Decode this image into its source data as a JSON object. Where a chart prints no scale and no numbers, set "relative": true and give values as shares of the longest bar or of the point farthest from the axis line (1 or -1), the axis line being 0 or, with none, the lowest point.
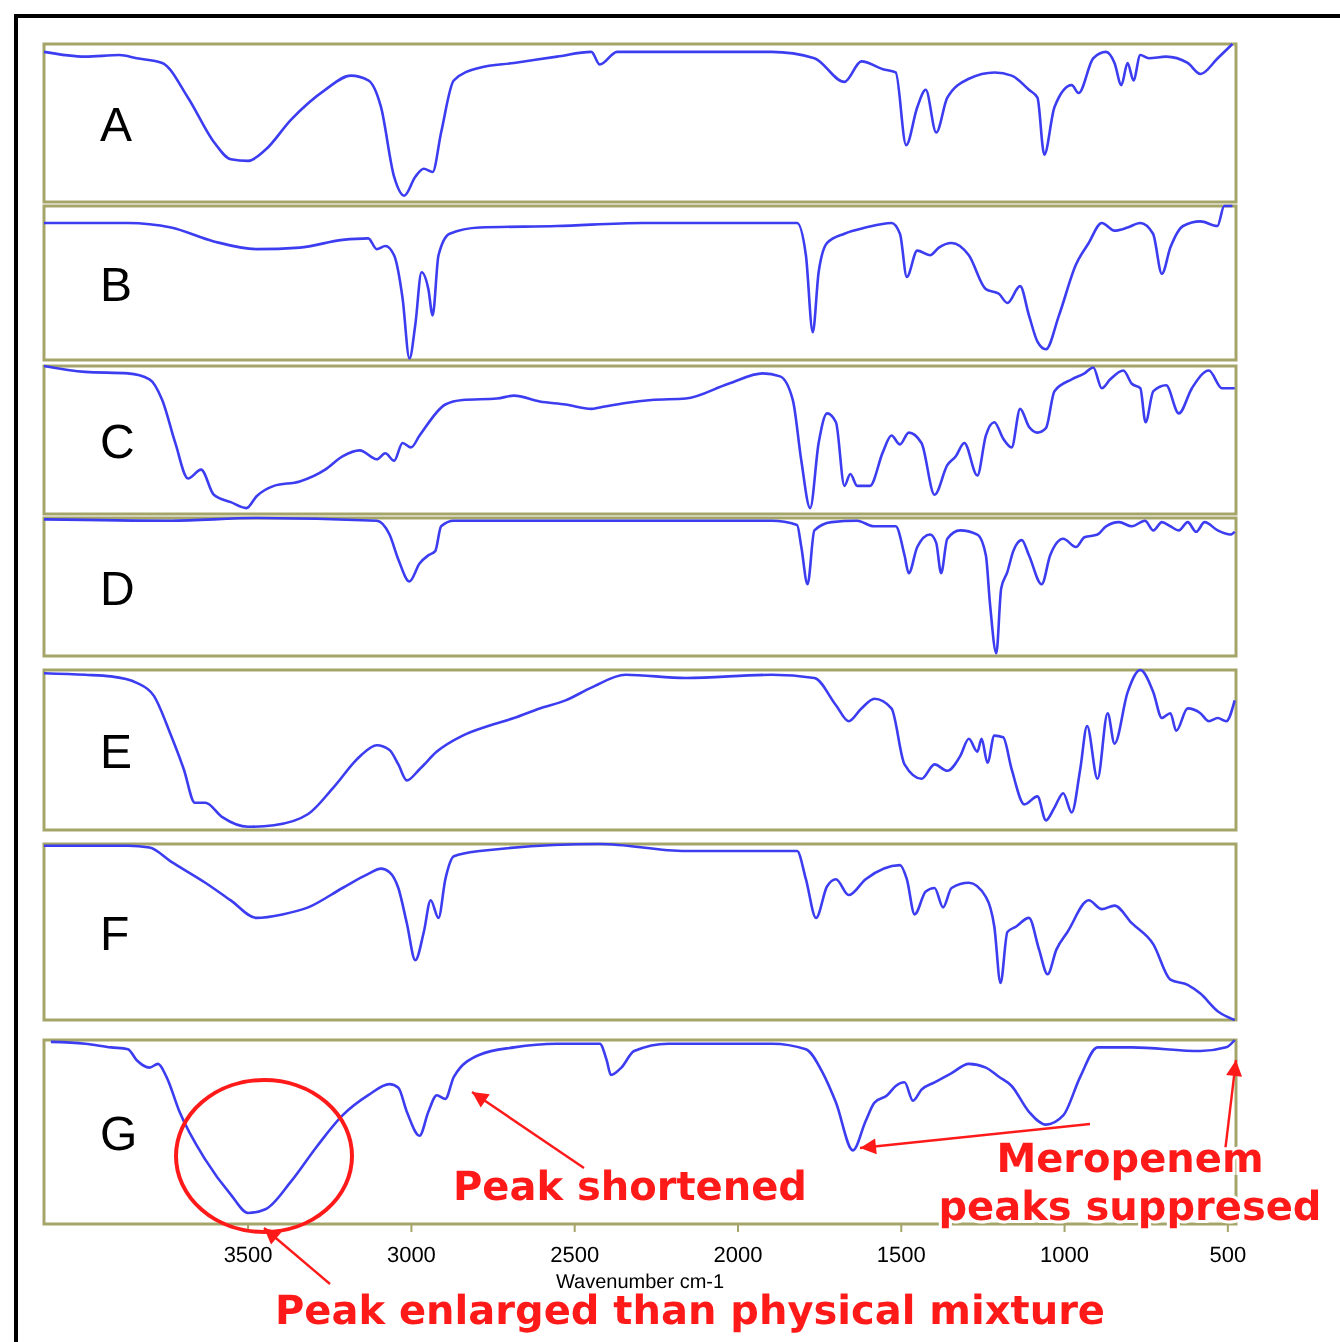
{
  "chart_data": [
    {
      "type": "line",
      "title": "A",
      "relative": true,
      "xlim": [
        4125,
        475
      ],
      "tick_labels": false,
      "series": [
        {
          "color": "#3c3cf0",
          "x": [
            4125,
            3999,
            3894,
            3841,
            3763,
            3684,
            3605,
            3553,
            3500,
            3447,
            3369,
            3264,
            3185,
            3132,
            3093,
            3053,
            3022,
            2988,
            2962,
            2935,
            2909,
            2870,
            2791,
            2686,
            2554,
            2449,
            2423,
            2370,
            2160,
            1897,
            1766,
            1674,
            1622,
            1556,
            1517,
            1485,
            1451,
            1425,
            1393,
            1359,
            1293,
            1214,
            1162,
            1109,
            1083,
            1062,
            1031,
            978,
            957,
            912,
            873,
            847,
            826,
            807,
            789,
            768,
            742,
            689,
            623,
            584,
            531,
            486
          ],
          "values": [
            0.95,
            0.92,
            0.93,
            0.91,
            0.88,
            0.66,
            0.38,
            0.27,
            0.26,
            0.33,
            0.52,
            0.71,
            0.8,
            0.77,
            0.6,
            0.16,
            0.04,
            0.16,
            0.21,
            0.19,
            0.44,
            0.77,
            0.85,
            0.88,
            0.92,
            0.95,
            0.87,
            0.95,
            0.95,
            0.95,
            0.91,
            0.76,
            0.89,
            0.84,
            0.82,
            0.36,
            0.6,
            0.71,
            0.44,
            0.66,
            0.78,
            0.82,
            0.8,
            0.71,
            0.66,
            0.3,
            0.6,
            0.74,
            0.69,
            0.91,
            0.95,
            0.88,
            0.74,
            0.88,
            0.77,
            0.93,
            0.91,
            0.92,
            0.88,
            0.81,
            0.91,
            1
          ]
        }
      ]
    },
    {
      "type": "line",
      "title": "B",
      "relative": true,
      "xlim": [
        4125,
        475
      ],
      "tick_labels": false,
      "series": [
        {
          "color": "#3c3cf0",
          "x": [
            4125,
            3868,
            3736,
            3605,
            3474,
            3342,
            3211,
            3132,
            3106,
            3080,
            3053,
            3027,
            3006,
            2988,
            2969,
            2948,
            2935,
            2917,
            2883,
            2791,
            2554,
            2292,
            1819,
            1792,
            1771,
            1753,
            1727,
            1674,
            1609,
            1530,
            1504,
            1483,
            1451,
            1412,
            1385,
            1346,
            1293,
            1241,
            1201,
            1175,
            1136,
            1109,
            1083,
            1057,
            1017,
            965,
            926,
            886,
            847,
            807,
            768,
            729,
            702,
            676,
            637,
            584,
            532,
            511,
            486
          ],
          "values": [
            0.89,
            0.89,
            0.86,
            0.77,
            0.72,
            0.73,
            0.78,
            0.79,
            0.72,
            0.74,
            0.68,
            0.4,
            0.01,
            0.23,
            0.57,
            0.46,
            0.29,
            0.68,
            0.82,
            0.86,
            0.87,
            0.89,
            0.89,
            0.68,
            0.18,
            0.57,
            0.76,
            0.82,
            0.86,
            0.89,
            0.82,
            0.54,
            0.71,
            0.68,
            0.73,
            0.76,
            0.68,
            0.46,
            0.43,
            0.37,
            0.48,
            0.29,
            0.12,
            0.07,
            0.29,
            0.62,
            0.76,
            0.89,
            0.84,
            0.86,
            0.89,
            0.82,
            0.56,
            0.73,
            0.87,
            0.9,
            0.87,
            1,
            1
          ]
        }
      ]
    },
    {
      "type": "line",
      "title": "C",
      "relative": true,
      "xlim": [
        4125,
        475
      ],
      "tick_labels": false,
      "series": [
        {
          "color": "#3c3cf0",
          "x": [
            4125,
            3999,
            3868,
            3802,
            3763,
            3723,
            3684,
            3644,
            3605,
            3553,
            3505,
            3474,
            3421,
            3342,
            3264,
            3211,
            3158,
            3106,
            3080,
            3053,
            3027,
            3001,
            2975,
            2896,
            2843,
            2738,
            2686,
            2607,
            2528,
            2449,
            2423,
            2344,
            2265,
            2160,
            2029,
            1924,
            1871,
            1832,
            1806,
            1779,
            1753,
            1727,
            1700,
            1674,
            1656,
            1635,
            1596,
            1556,
            1530,
            1504,
            1477,
            1438,
            1398,
            1359,
            1333,
            1307,
            1267,
            1241,
            1215,
            1188,
            1162,
            1136,
            1109,
            1083,
            1057,
            1031,
            978,
            939,
            912,
            886,
            860,
            820,
            794,
            768,
            752,
            728,
            689,
            650,
            610,
            558,
            518,
            479
          ],
          "values": [
            1,
            0.96,
            0.95,
            0.91,
            0.77,
            0.48,
            0.24,
            0.3,
            0.13,
            0.08,
            0.04,
            0.12,
            0.19,
            0.22,
            0.3,
            0.39,
            0.43,
            0.37,
            0.41,
            0.36,
            0.48,
            0.45,
            0.53,
            0.74,
            0.77,
            0.78,
            0.8,
            0.76,
            0.74,
            0.71,
            0.72,
            0.75,
            0.77,
            0.78,
            0.88,
            0.95,
            0.93,
            0.77,
            0.36,
            0.04,
            0.48,
            0.68,
            0.62,
            0.19,
            0.27,
            0.19,
            0.19,
            0.42,
            0.53,
            0.47,
            0.55,
            0.48,
            0.13,
            0.33,
            0.39,
            0.48,
            0.26,
            0.53,
            0.62,
            0.51,
            0.45,
            0.71,
            0.59,
            0.55,
            0.58,
            0.83,
            0.91,
            0.95,
            0.99,
            0.85,
            0.91,
            0.97,
            0.88,
            0.85,
            0.62,
            0.83,
            0.87,
            0.68,
            0.85,
            0.97,
            0.85,
            0.85
          ]
        }
      ]
    },
    {
      "type": "line",
      "title": "D",
      "relative": true,
      "xlim": [
        4125,
        475
      ],
      "tick_labels": false,
      "series": [
        {
          "color": "#3c3cf0",
          "x": [
            4125,
            3736,
            3474,
            3106,
            3067,
            3040,
            3006,
            2975,
            2948,
            2927,
            2909,
            2870,
            2423,
            1897,
            1819,
            1806,
            1787,
            1766,
            1714,
            1635,
            1584,
            1517,
            1490,
            1477,
            1451,
            1412,
            1393,
            1378,
            1359,
            1320,
            1267,
            1241,
            1228,
            1209,
            1194,
            1175,
            1157,
            1131,
            1109,
            1070,
            1044,
            1004,
            965,
            939,
            899,
            873,
            833,
            794,
            754,
            728,
            702,
            676,
            650,
            623,
            597,
            571,
            531,
            492,
            479
          ],
          "values": [
            0.99,
            0.98,
            1,
            0.98,
            0.88,
            0.7,
            0.54,
            0.67,
            0.73,
            0.76,
            0.94,
            0.98,
            0.98,
            0.98,
            0.95,
            0.79,
            0.52,
            0.91,
            0.97,
            0.98,
            0.94,
            0.94,
            0.73,
            0.6,
            0.79,
            0.88,
            0.82,
            0.6,
            0.85,
            0.91,
            0.88,
            0.73,
            0.37,
            0.02,
            0.49,
            0.61,
            0.76,
            0.84,
            0.73,
            0.52,
            0.73,
            0.85,
            0.79,
            0.86,
            0.88,
            0.94,
            0.97,
            0.94,
            0.98,
            0.91,
            0.97,
            0.94,
            0.91,
            0.97,
            0.9,
            0.97,
            0.91,
            0.88,
            0.9
          ]
        }
      ]
    },
    {
      "type": "line",
      "title": "E",
      "relative": true,
      "xlim": [
        4125,
        475
      ],
      "tick_labels": false,
      "series": [
        {
          "color": "#3c3cf0",
          "x": [
            4125,
            3999,
            3920,
            3841,
            3789,
            3736,
            3697,
            3663,
            3631,
            3579,
            3500,
            3421,
            3316,
            3237,
            3158,
            3106,
            3067,
            3040,
            3014,
            2975,
            2922,
            2843,
            2765,
            2686,
            2607,
            2528,
            2449,
            2344,
            2160,
            1897,
            1766,
            1700,
            1661,
            1622,
            1582,
            1530,
            1490,
            1438,
            1398,
            1359,
            1320,
            1293,
            1267,
            1254,
            1236,
            1215,
            1188,
            1162,
            1123,
            1083,
            1057,
            1031,
            1004,
            978,
            952,
            931,
            899,
            868,
            847,
            807,
            768,
            728,
            702,
            676,
            658,
            623,
            584,
            558,
            531,
            505,
            479
          ],
          "values": [
            0.98,
            0.97,
            0.96,
            0.92,
            0.84,
            0.59,
            0.38,
            0.17,
            0.17,
            0.08,
            0.02,
            0.03,
            0.1,
            0.27,
            0.46,
            0.53,
            0.5,
            0.41,
            0.31,
            0.38,
            0.49,
            0.59,
            0.65,
            0.7,
            0.76,
            0.81,
            0.89,
            0.97,
            0.95,
            0.97,
            0.95,
            0.78,
            0.68,
            0.76,
            0.82,
            0.76,
            0.41,
            0.32,
            0.41,
            0.37,
            0.46,
            0.57,
            0.49,
            0.57,
            0.42,
            0.59,
            0.58,
            0.38,
            0.16,
            0.21,
            0.06,
            0.14,
            0.23,
            0.11,
            0.38,
            0.65,
            0.32,
            0.73,
            0.54,
            0.86,
            1,
            0.86,
            0.7,
            0.73,
            0.62,
            0.76,
            0.73,
            0.68,
            0.7,
            0.68,
            0.81
          ]
        }
      ]
    },
    {
      "type": "line",
      "title": "F",
      "relative": true,
      "xlim": [
        4125,
        475
      ],
      "tick_labels": false,
      "series": [
        {
          "color": "#3c3cf0",
          "x": [
            4125,
            3999,
            3868,
            3802,
            3736,
            3631,
            3553,
            3474,
            3395,
            3316,
            3211,
            3132,
            3093,
            3067,
            3040,
            3014,
            2988,
            2962,
            2941,
            2917,
            2896,
            2870,
            2791,
            2423,
            2160,
            1819,
            1792,
            1761,
            1727,
            1700,
            1661,
            1609,
            1504,
            1483,
            1459,
            1425,
            1398,
            1372,
            1346,
            1293,
            1241,
            1215,
            1196,
            1175,
            1149,
            1109,
            1078,
            1052,
            1025,
            991,
            926,
            886,
            847,
            794,
            728,
            676,
            623,
            584,
            531,
            479
          ],
          "values": [
            0.99,
            0.99,
            0.99,
            0.98,
            0.9,
            0.78,
            0.68,
            0.58,
            0.6,
            0.64,
            0.75,
            0.83,
            0.86,
            0.84,
            0.75,
            0.55,
            0.34,
            0.5,
            0.68,
            0.58,
            0.8,
            0.93,
            0.96,
            1,
            0.96,
            0.96,
            0.8,
            0.58,
            0.76,
            0.8,
            0.71,
            0.8,
            0.88,
            0.8,
            0.6,
            0.73,
            0.75,
            0.64,
            0.75,
            0.78,
            0.7,
            0.53,
            0.21,
            0.5,
            0.53,
            0.58,
            0.4,
            0.26,
            0.4,
            0.5,
            0.68,
            0.63,
            0.65,
            0.55,
            0.43,
            0.23,
            0.2,
            0.15,
            0.05,
            0
          ]
        }
      ]
    },
    {
      "type": "line",
      "title": "G",
      "relative": true,
      "xlim": [
        4125,
        475
      ],
      "xticks": [
        3500,
        3000,
        2500,
        2000,
        1500,
        1000,
        500
      ],
      "xlabel": "Wavenumber cm-1",
      "tick_labels": "x",
      "series": [
        {
          "color": "#3c3cf0",
          "x": [
            4104,
            3999,
            3920,
            3868,
            3841,
            3802,
            3776,
            3750,
            3710,
            3631,
            3553,
            3500,
            3447,
            3369,
            3290,
            3211,
            3132,
            3067,
            3040,
            3014,
            2975,
            2948,
            2922,
            2896,
            2870,
            2791,
            2686,
            2554,
            2423,
            2402,
            2389,
            2357,
            2318,
            2213,
            1897,
            1792,
            1740,
            1700,
            1648,
            1609,
            1582,
            1543,
            1517,
            1490,
            1464,
            1438,
            1398,
            1346,
            1293,
            1241,
            1201,
            1162,
            1109,
            1057,
            1004,
            952,
            899,
            794,
            584,
            505,
            479
          ],
          "values": [
            0.99,
            0.98,
            0.96,
            0.95,
            0.89,
            0.85,
            0.87,
            0.8,
            0.61,
            0.35,
            0.16,
            0.06,
            0.08,
            0.23,
            0.42,
            0.59,
            0.7,
            0.76,
            0.74,
            0.61,
            0.48,
            0.61,
            0.7,
            0.68,
            0.8,
            0.92,
            0.96,
            0.98,
            0.98,
            0.89,
            0.81,
            0.85,
            0.94,
            0.98,
            0.98,
            0.95,
            0.82,
            0.66,
            0.4,
            0.56,
            0.66,
            0.7,
            0.75,
            0.77,
            0.67,
            0.73,
            0.77,
            0.82,
            0.87,
            0.85,
            0.8,
            0.75,
            0.61,
            0.54,
            0.59,
            0.8,
            0.96,
            0.96,
            0.94,
            0.96,
            1
          ]
        }
      ],
      "annotations": [
        "Peak shortened",
        "Meropenem peaks suppresed",
        "Peak enlarged than physical mixture"
      ]
    }
  ]
}
